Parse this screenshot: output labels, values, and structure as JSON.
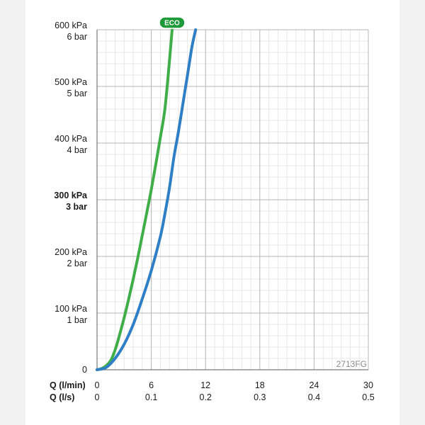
{
  "chart_data": {
    "type": "line",
    "y_axis": {
      "range": [
        0,
        600
      ],
      "unit_primary": "kPa",
      "ticks": [
        {
          "value": 0,
          "kpa": "0",
          "bar": "",
          "bold": false
        },
        {
          "value": 100,
          "kpa": "100 kPa",
          "bar": "1 bar",
          "bold": false
        },
        {
          "value": 200,
          "kpa": "200 kPa",
          "bar": "2 bar",
          "bold": false
        },
        {
          "value": 300,
          "kpa": "300 kPa",
          "bar": "3 bar",
          "bold": true
        },
        {
          "value": 400,
          "kpa": "400 kPa",
          "bar": "4 bar",
          "bold": false
        },
        {
          "value": 500,
          "kpa": "500 kPa",
          "bar": "5 bar",
          "bold": false
        },
        {
          "value": 600,
          "kpa": "600 kPa",
          "bar": "6 bar",
          "bold": false
        }
      ]
    },
    "x_axis": {
      "range": [
        0,
        30
      ],
      "row1_title": "Q (l/min)",
      "row2_title": "Q (l/s)",
      "ticks": [
        {
          "value": 0,
          "lmin": "0",
          "ls": "0"
        },
        {
          "value": 6,
          "lmin": "6",
          "ls": "0.1"
        },
        {
          "value": 12,
          "lmin": "12",
          "ls": "0.2"
        },
        {
          "value": 18,
          "lmin": "18",
          "ls": "0.3"
        },
        {
          "value": 24,
          "lmin": "24",
          "ls": "0.4"
        },
        {
          "value": 30,
          "lmin": "30",
          "ls": "0.5"
        }
      ]
    },
    "grid": true,
    "series": [
      {
        "name": "ECO",
        "color": "#3fae49",
        "x": [
          0,
          0.5,
          1,
          1.5,
          2,
          2.5,
          3,
          3.5,
          4,
          4.5,
          5,
          5.5,
          6,
          6.5,
          7,
          7.5,
          8,
          8.3
        ],
        "y": [
          0,
          2,
          7,
          16,
          35,
          62,
          92,
          125,
          160,
          197,
          237,
          277,
          318,
          363,
          410,
          460,
          543,
          600
        ]
      },
      {
        "name": "",
        "color": "#2f7fc6",
        "x": [
          0,
          1,
          2,
          3,
          4,
          5,
          6,
          7,
          7.5,
          8,
          8.5,
          9,
          9.5,
          10,
          10.5,
          10.9
        ],
        "y": [
          0,
          4,
          20,
          45,
          80,
          125,
          175,
          235,
          275,
          320,
          375,
          420,
          470,
          520,
          570,
          600
        ]
      }
    ],
    "badge": {
      "text": "ECO",
      "color": "#1f9a3a"
    },
    "code": "2713FG"
  }
}
